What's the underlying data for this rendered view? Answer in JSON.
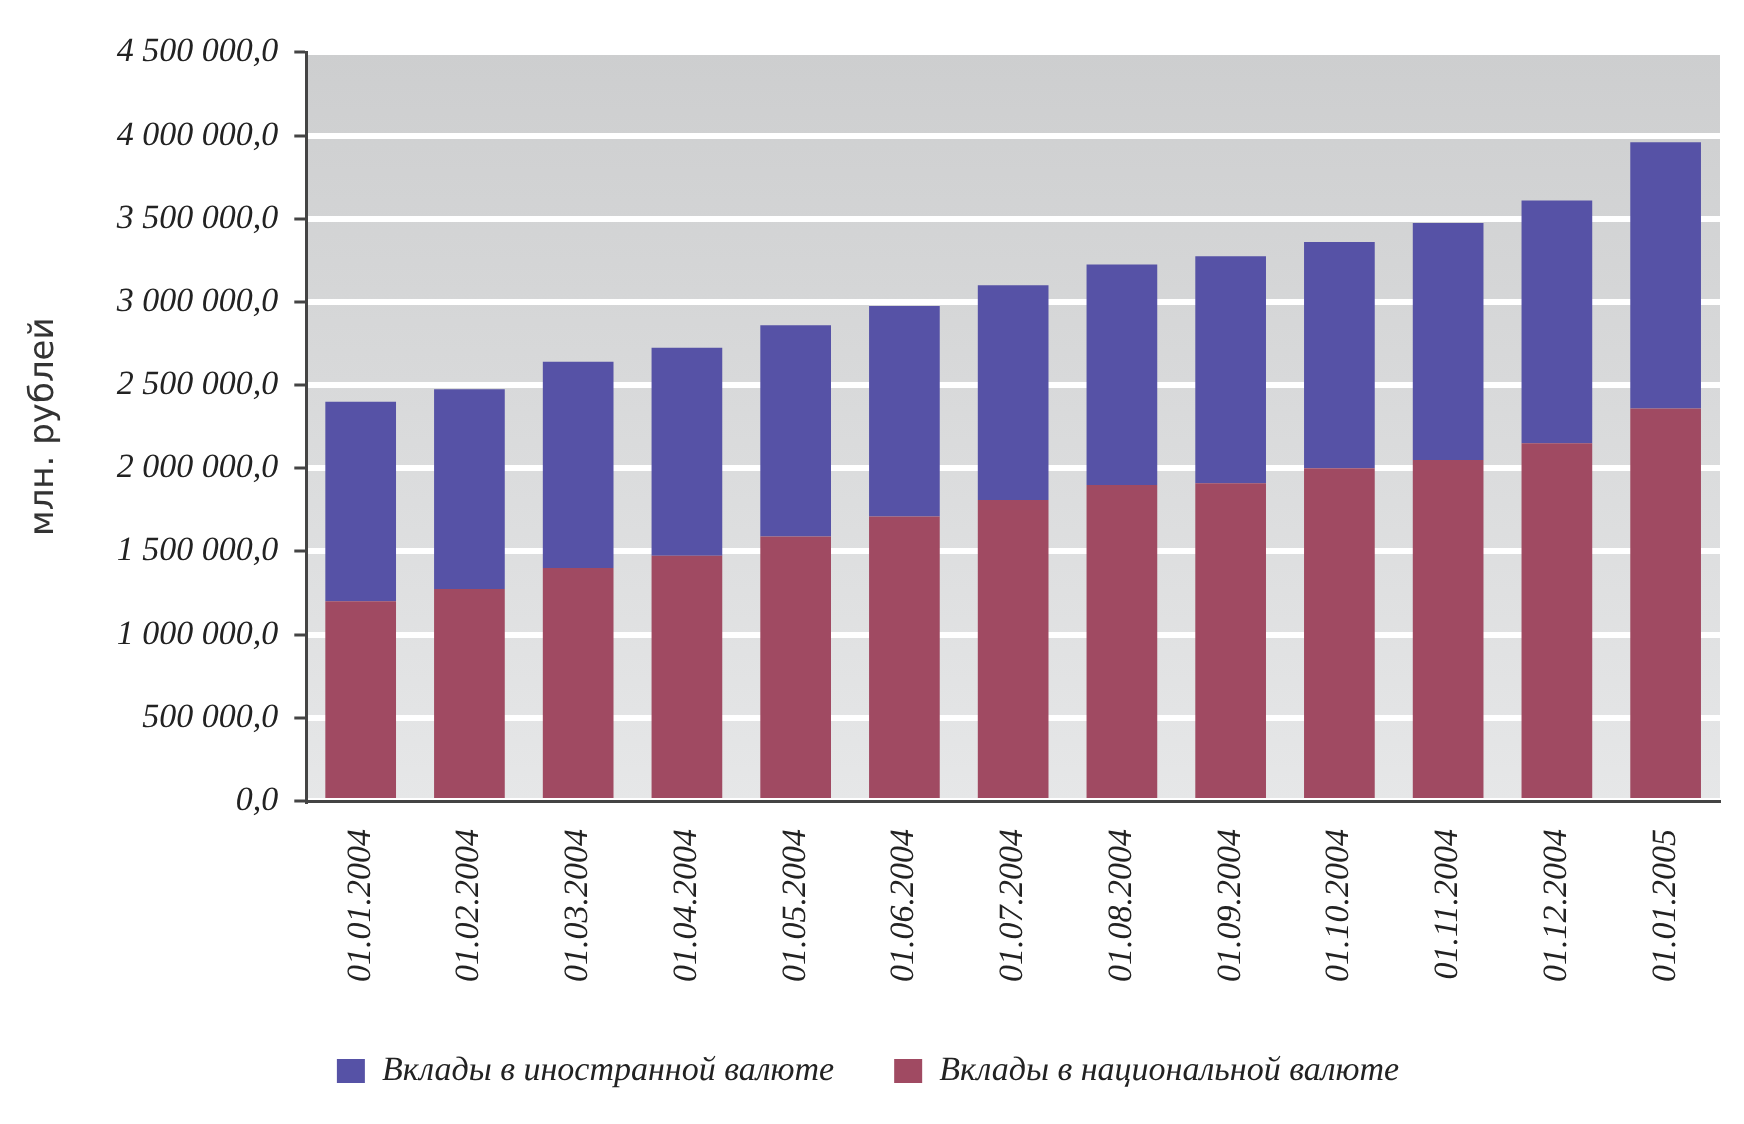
{
  "chart_data": {
    "type": "bar",
    "stacked": true,
    "ylabel": "млн. рублей",
    "categories": [
      "01.01.2004",
      "01.02.2004",
      "01.03.2004",
      "01.04.2004",
      "01.05.2004",
      "01.06.2004",
      "01.07.2004",
      "01.08.2004",
      "01.09.2004",
      "01.10.2004",
      "01.11.2004",
      "01.12.2004",
      "01.01.2005"
    ],
    "series": [
      {
        "name": "Вклады в национальной валюте",
        "color": "#a04a62",
        "values": [
          1200000,
          1275000,
          1400000,
          1475000,
          1590000,
          1710000,
          1810000,
          1900000,
          1910000,
          2000000,
          2050000,
          2150000,
          2360000
        ]
      },
      {
        "name": "Вклады в иностранной валюте",
        "color": "#5652a6",
        "values": [
          1200000,
          1200000,
          1240000,
          1250000,
          1270000,
          1265000,
          1290000,
          1325000,
          1365000,
          1360000,
          1425000,
          1460000,
          1600000
        ]
      }
    ],
    "ylim": [
      0,
      4500000
    ],
    "yticks": [
      {
        "value": 0,
        "label": "0,0"
      },
      {
        "value": 500000,
        "label": "500 000,0"
      },
      {
        "value": 1000000,
        "label": "1 000 000,0"
      },
      {
        "value": 1500000,
        "label": "1 500 000,0"
      },
      {
        "value": 2000000,
        "label": "2 000 000,0"
      },
      {
        "value": 2500000,
        "label": "2 500 000,0"
      },
      {
        "value": 3000000,
        "label": "3 000 000,0"
      },
      {
        "value": 3500000,
        "label": "3 500 000,0"
      },
      {
        "value": 4000000,
        "label": "4 000 000,0"
      },
      {
        "value": 4500000,
        "label": "4 500 000,0"
      }
    ],
    "grid": "y",
    "legend": "bottom"
  }
}
